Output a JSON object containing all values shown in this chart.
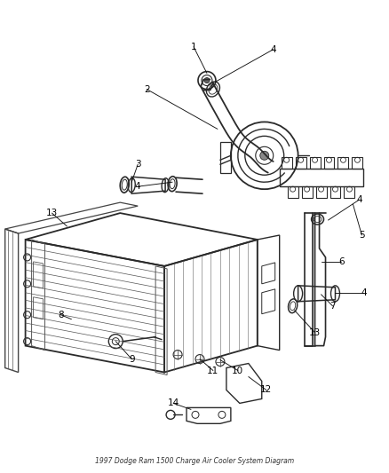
{
  "title": "1997 Dodge Ram 1500 Charge Air Cooler System Diagram",
  "bg": "#ffffff",
  "lc": "#2a2a2a",
  "fig_w": 4.38,
  "fig_h": 5.33,
  "dpi": 100
}
